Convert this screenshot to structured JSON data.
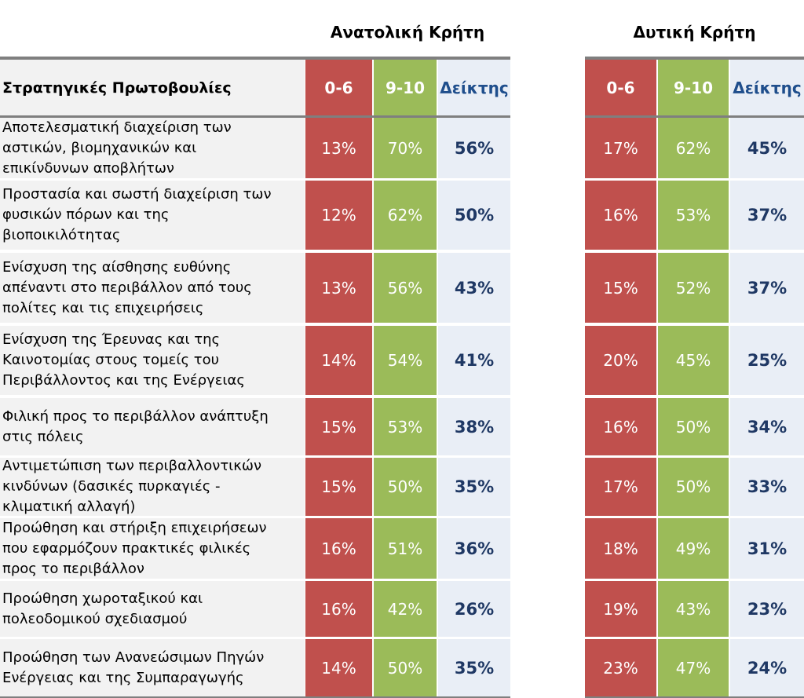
{
  "regions": {
    "east": "Ανατολική Κρήτη",
    "west": "Δυτική Κρήτη"
  },
  "header": {
    "initiatives": "Στρατηγικές Πρωτοβουλίες",
    "low": "0-6",
    "high": "9-10",
    "index": "Δείκτης"
  },
  "rows": [
    {
      "lines": [
        "Αποτελεσματική διαχείριση των",
        "αστικών, βιομηχανικών και",
        "επικίνδυνων αποβλήτων"
      ],
      "east": {
        "low": "13%",
        "high": "70%",
        "index": "56%"
      },
      "west": {
        "low": "17%",
        "high": "62%",
        "index": "45%"
      }
    },
    {
      "lines": [
        "Προστασία και σωστή διαχείριση των",
        "φυσικών πόρων και της",
        "βιοποικιλότητας"
      ],
      "east": {
        "low": "12%",
        "high": "62%",
        "index": "50%"
      },
      "west": {
        "low": "16%",
        "high": "53%",
        "index": "37%"
      }
    },
    {
      "lines": [
        "Ενίσχυση της αίσθησης ευθύνης",
        "απέναντι στο περιβάλλον από τους",
        "πολίτες και τις επιχειρήσεις"
      ],
      "east": {
        "low": "13%",
        "high": "56%",
        "index": "43%"
      },
      "west": {
        "low": "15%",
        "high": "52%",
        "index": "37%"
      }
    },
    {
      "lines": [
        "Ενίσχυση της Έρευνας και της",
        "Καινοτομίας στους τομείς του",
        "Περιβάλλοντος και της Ενέργειας"
      ],
      "east": {
        "low": "14%",
        "high": "54%",
        "index": "41%"
      },
      "west": {
        "low": "20%",
        "high": "45%",
        "index": "25%"
      }
    },
    {
      "lines": [
        "Φιλική προς το περιβάλλον ανάπτυξη",
        "στις πόλεις"
      ],
      "east": {
        "low": "15%",
        "high": "53%",
        "index": "38%"
      },
      "west": {
        "low": "16%",
        "high": "50%",
        "index": "34%"
      }
    },
    {
      "lines": [
        "Αντιμετώπιση των περιβαλλοντικών",
        "κινδύνων (δασικές πυρκαγιές -",
        "κλιματική αλλαγή)"
      ],
      "east": {
        "low": "15%",
        "high": "50%",
        "index": "35%"
      },
      "west": {
        "low": "17%",
        "high": "50%",
        "index": "33%"
      }
    },
    {
      "lines": [
        "Προώθηση και στήριξη επιχειρήσεων",
        "που εφαρμόζουν πρακτικές φιλικές",
        "προς το περιβάλλον"
      ],
      "east": {
        "low": "16%",
        "high": "51%",
        "index": "36%"
      },
      "west": {
        "low": "18%",
        "high": "49%",
        "index": "31%"
      }
    },
    {
      "lines": [
        "Προώθηση χωροταξικού και",
        "πολεοδομικού σχεδιασμού"
      ],
      "east": {
        "low": "16%",
        "high": "42%",
        "index": "26%"
      },
      "west": {
        "low": "19%",
        "high": "43%",
        "index": "23%"
      }
    },
    {
      "lines": [
        "Προώθηση των Ανανεώσιμων Πηγών",
        "Ενέργειας και της Συμπαραγωγής"
      ],
      "east": {
        "low": "14%",
        "high": "50%",
        "index": "35%"
      },
      "west": {
        "low": "23%",
        "high": "47%",
        "index": "24%"
      }
    }
  ]
}
